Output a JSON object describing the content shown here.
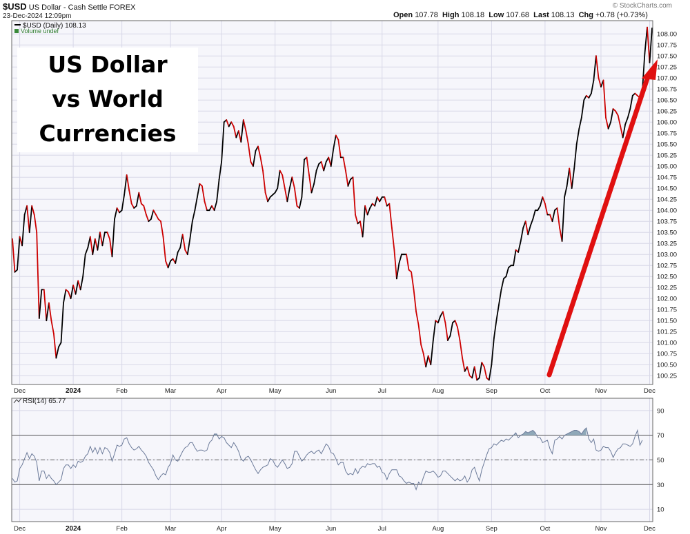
{
  "header": {
    "symbol": "$USD",
    "description": "US Dollar - Cash Settle",
    "exchange": "FOREX",
    "datetime": "23-Dec-2024 12:09pm",
    "open_label": "Open",
    "open": "107.78",
    "high_label": "High",
    "high": "108.18",
    "low_label": "Low",
    "low": "107.68",
    "last_label": "Last",
    "last": "108.13",
    "chg_label": "Chg",
    "chg": "+0.78 (+0.73%)",
    "brand": "© StockCharts.com"
  },
  "callout": {
    "line1": "US Dollar",
    "line2": "vs World",
    "line3": "Currencies"
  },
  "colors": {
    "up": "#000000",
    "down": "#cc0000",
    "rsi_line": "#6b7a99",
    "rsi_fill": "#8fa8b8",
    "arrow": "#e01010",
    "grid": "#d8d8e8"
  },
  "chart_data": [
    {
      "type": "line",
      "legend": "$USD (Daily) 108.13",
      "volume_label": "Volume undef",
      "ylim": [
        100.05,
        108.3
      ],
      "y_ticks": [
        "100.25",
        "100.50",
        "100.75",
        "101.00",
        "101.25",
        "101.50",
        "101.75",
        "102.00",
        "102.25",
        "102.50",
        "102.75",
        "103.00",
        "103.25",
        "103.50",
        "103.75",
        "104.00",
        "104.25",
        "104.50",
        "104.75",
        "105.00",
        "105.25",
        "105.50",
        "105.75",
        "106.00",
        "106.25",
        "106.50",
        "106.75",
        "107.00",
        "107.25",
        "107.50",
        "107.75",
        "108.00"
      ],
      "month_labels": [
        "Dec",
        "2024",
        "Feb",
        "Mar",
        "Apr",
        "May",
        "Jun",
        "Jul",
        "Aug",
        "Sep",
        "Oct",
        "Nov",
        "Dec"
      ],
      "month_index": [
        3,
        25,
        45,
        65,
        86,
        108,
        131,
        152,
        175,
        197,
        219,
        242,
        262
      ],
      "series": [
        {
          "values": [
            103.35,
            102.6,
            102.65,
            103.4,
            103.2,
            103.9,
            104.1,
            103.5,
            104.1,
            103.9,
            103.5,
            101.55,
            102.2,
            102.2,
            101.5,
            101.9,
            101.5,
            101.2,
            100.65,
            100.9,
            101.0,
            101.9,
            102.2,
            102.15,
            102.0,
            102.3,
            102.1,
            102.4,
            102.2,
            102.5,
            103.0,
            103.15,
            103.4,
            103.0,
            103.35,
            103.1,
            103.5,
            103.2,
            103.5,
            103.5,
            103.35,
            102.95,
            103.8,
            104.05,
            103.95,
            104.0,
            104.35,
            104.8,
            104.45,
            104.15,
            104.05,
            104.1,
            104.4,
            104.15,
            104.1,
            103.9,
            103.75,
            103.8,
            104.0,
            103.9,
            103.8,
            103.75,
            103.4,
            102.85,
            102.7,
            102.85,
            102.9,
            102.8,
            103.05,
            103.15,
            103.45,
            103.1,
            103.0,
            103.35,
            103.75,
            104.0,
            104.3,
            104.6,
            104.55,
            104.2,
            104.0,
            104.0,
            104.1,
            104.0,
            104.2,
            104.7,
            105.1,
            106.0,
            106.05,
            105.9,
            106.0,
            105.9,
            105.65,
            105.8,
            105.55,
            106.05,
            105.8,
            105.5,
            105.1,
            105.0,
            105.35,
            105.45,
            105.2,
            104.9,
            104.4,
            104.2,
            104.3,
            104.35,
            104.4,
            104.5,
            104.9,
            104.8,
            104.5,
            104.2,
            104.5,
            104.75,
            104.5,
            104.1,
            104.05,
            104.3,
            105.15,
            105.2,
            104.8,
            104.4,
            104.6,
            104.9,
            105.05,
            105.1,
            104.9,
            105.1,
            105.2,
            105.0,
            105.4,
            105.7,
            105.6,
            105.2,
            105.2,
            104.9,
            104.55,
            104.7,
            104.75,
            103.9,
            103.7,
            103.75,
            103.4,
            104.1,
            103.9,
            104.05,
            104.15,
            104.1,
            104.3,
            104.2,
            104.3,
            104.3,
            104.1,
            104.15,
            103.6,
            103.1,
            102.45,
            102.8,
            103.0,
            103.0,
            103.0,
            102.65,
            102.6,
            102.2,
            101.7,
            101.4,
            100.95,
            100.75,
            100.45,
            100.7,
            100.5,
            101.05,
            101.5,
            101.45,
            101.6,
            101.7,
            101.45,
            101.05,
            101.15,
            101.45,
            101.5,
            101.35,
            101.05,
            100.65,
            100.35,
            100.45,
            100.25,
            100.2,
            100.45,
            100.15,
            100.2,
            100.55,
            100.45,
            100.2,
            100.15,
            100.5,
            101.1,
            101.5,
            101.85,
            102.2,
            102.45,
            102.5,
            102.7,
            102.75,
            102.75,
            103.1,
            103.05,
            103.3,
            103.6,
            103.75,
            103.45,
            103.65,
            103.8,
            104.0,
            104.0,
            104.1,
            104.3,
            104.15,
            103.9,
            103.9,
            103.75,
            104.0,
            104.05,
            103.6,
            103.3,
            104.3,
            104.55,
            104.95,
            104.5,
            104.95,
            105.5,
            105.85,
            106.1,
            106.5,
            106.6,
            106.55,
            106.65,
            106.95,
            107.5,
            107.0,
            106.8,
            106.95,
            106.1,
            105.85,
            106.0,
            106.3,
            106.25,
            106.15,
            105.9,
            105.65,
            105.95,
            106.1,
            106.3,
            106.6,
            106.65,
            106.6,
            106.55,
            106.7,
            107.55,
            108.15,
            107.35,
            108.13
          ]
        }
      ]
    },
    {
      "type": "line",
      "legend": "RSI(14) 65.77",
      "ylim": [
        0,
        100
      ],
      "y_ticks": [
        "10",
        "30",
        "50",
        "70",
        "90"
      ],
      "reference_lines": [
        30,
        50,
        70
      ],
      "month_labels": [
        "Dec",
        "2024",
        "Feb",
        "Mar",
        "Apr",
        "May",
        "Jun",
        "Jul",
        "Aug",
        "Sep",
        "Oct",
        "Nov",
        "Dec"
      ],
      "month_index": [
        3,
        25,
        45,
        65,
        86,
        108,
        131,
        152,
        175,
        197,
        219,
        242,
        262
      ],
      "series": [
        {
          "values": [
            35,
            32,
            33,
            43,
            46,
            51,
            56,
            51,
            55,
            53,
            48,
            33,
            41,
            41,
            35,
            38,
            35,
            33,
            30,
            32,
            34,
            43,
            46,
            46,
            43,
            46,
            44,
            49,
            48,
            49,
            53,
            55,
            61,
            56,
            60,
            55,
            60,
            55,
            60,
            59,
            56,
            49,
            55,
            62,
            61,
            62,
            67,
            68,
            63,
            60,
            58,
            59,
            61,
            58,
            56,
            53,
            48,
            45,
            42,
            37,
            34,
            37,
            39,
            38,
            44,
            47,
            54,
            50,
            49,
            53,
            57,
            60,
            61,
            64,
            64,
            60,
            57,
            58,
            58,
            57,
            58,
            64,
            66,
            71,
            71,
            67,
            69,
            68,
            64,
            62,
            60,
            64,
            61,
            57,
            51,
            49,
            52,
            53,
            50,
            46,
            42,
            39,
            42,
            44,
            45,
            46,
            51,
            50,
            46,
            44,
            47,
            50,
            47,
            43,
            44,
            47,
            57,
            57,
            53,
            49,
            51,
            54,
            56,
            57,
            55,
            57,
            58,
            55,
            59,
            63,
            61,
            56,
            55,
            51,
            46,
            48,
            48,
            41,
            38,
            39,
            38,
            43,
            39,
            43,
            45,
            44,
            47,
            46,
            47,
            47,
            44,
            45,
            40,
            39,
            34,
            39,
            42,
            42,
            42,
            37,
            36,
            33,
            31,
            32,
            31,
            31,
            26,
            32,
            30,
            36,
            41,
            40,
            40,
            41,
            39,
            36,
            37,
            41,
            41,
            39,
            37,
            35,
            33,
            35,
            33,
            34,
            37,
            32,
            35,
            42,
            44,
            38,
            33,
            42,
            48,
            54,
            59,
            60,
            63,
            62,
            64,
            66,
            65,
            67,
            66,
            68,
            70,
            72,
            68,
            70,
            71,
            73,
            72,
            73,
            74,
            72,
            68,
            68,
            64,
            65,
            66,
            59,
            55,
            66,
            67,
            69,
            67,
            70,
            71,
            72,
            73,
            74,
            74,
            73,
            71,
            74,
            76,
            67,
            64,
            67,
            58,
            57,
            58,
            61,
            60,
            60,
            57,
            52,
            56,
            59,
            60,
            63,
            63,
            62,
            61,
            63,
            69,
            74,
            62,
            66
          ]
        }
      ]
    }
  ]
}
